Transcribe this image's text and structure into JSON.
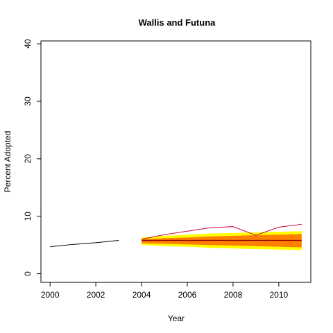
{
  "chart_data": {
    "type": "line",
    "title": "Wallis and Futuna",
    "xlabel": "Year",
    "ylabel": "Percent Adopted",
    "xlim": [
      1999.6,
      2011.4
    ],
    "ylim": [
      -1.5,
      40.5
    ],
    "xticks": [
      2000,
      2002,
      2004,
      2006,
      2008,
      2010
    ],
    "yticks": [
      0,
      10,
      20,
      30,
      40
    ],
    "grid": false,
    "colors": {
      "outer_band": "#ffff00",
      "inner_band": "#ff7f00",
      "median": "#8b0000",
      "observed": "#cc0033",
      "historical": "#000000"
    },
    "historical": {
      "x": [
        2000,
        2001,
        2002,
        2003
      ],
      "y": [
        4.7,
        5.1,
        5.4,
        5.8
      ]
    },
    "forecast_x": [
      2004,
      2005,
      2006,
      2007,
      2008,
      2009,
      2010,
      2011
    ],
    "outer_band": {
      "lower": [
        5.0,
        4.8,
        4.7,
        4.5,
        4.4,
        4.3,
        4.2,
        4.1
      ],
      "upper": [
        6.3,
        6.6,
        6.8,
        7.0,
        7.1,
        7.2,
        7.3,
        7.4
      ]
    },
    "inner_band": {
      "lower": [
        5.3,
        5.2,
        5.1,
        5.0,
        4.9,
        4.8,
        4.7,
        4.6
      ],
      "upper": [
        6.0,
        6.2,
        6.3,
        6.5,
        6.6,
        6.7,
        6.8,
        6.9
      ]
    },
    "median": [
      5.8,
      5.8,
      5.8,
      5.8,
      5.8,
      5.8,
      5.8,
      5.8
    ],
    "observed": {
      "x": [
        2004,
        2005,
        2006,
        2007,
        2008,
        2009,
        2010,
        2011
      ],
      "y": [
        6.0,
        6.8,
        7.4,
        8.0,
        8.2,
        6.7,
        8.1,
        8.6
      ]
    }
  }
}
